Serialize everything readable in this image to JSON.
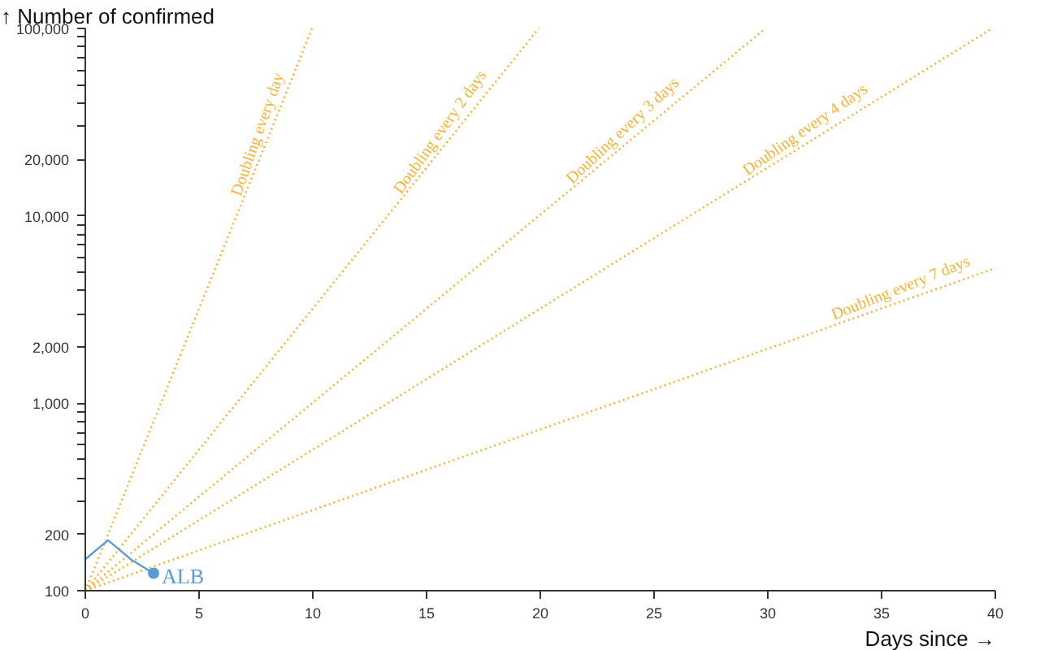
{
  "chart_data": {
    "type": "line",
    "xlabel": "Days since →",
    "ylabel": "↑ Number of confirmed",
    "log": "y",
    "grid": false,
    "marker": "none",
    "xlim": [
      0,
      40
    ],
    "xticks": [
      0,
      5,
      10,
      15,
      20,
      25,
      30,
      35,
      40
    ],
    "ylim": [
      100,
      100000
    ],
    "yticks": [
      {
        "value": 100,
        "label": "100"
      },
      {
        "value": 200,
        "label": "200"
      },
      {
        "value": 300,
        "label": null
      },
      {
        "value": 400,
        "label": null
      },
      {
        "value": 500,
        "label": null
      },
      {
        "value": 600,
        "label": null
      },
      {
        "value": 700,
        "label": null
      },
      {
        "value": 800,
        "label": null
      },
      {
        "value": 900,
        "label": null
      },
      {
        "value": 1000,
        "label": "1,000"
      },
      {
        "value": 2000,
        "label": "2,000"
      },
      {
        "value": 3000,
        "label": null
      },
      {
        "value": 4000,
        "label": null
      },
      {
        "value": 5000,
        "label": null
      },
      {
        "value": 6000,
        "label": null
      },
      {
        "value": 7000,
        "label": null
      },
      {
        "value": 8000,
        "label": null
      },
      {
        "value": 9000,
        "label": null
      },
      {
        "value": 10000,
        "label": "10,000"
      },
      {
        "value": 20000,
        "label": "20,000"
      },
      {
        "value": 30000,
        "label": null
      },
      {
        "value": 40000,
        "label": null
      },
      {
        "value": 50000,
        "label": null
      },
      {
        "value": 60000,
        "label": null
      },
      {
        "value": 70000,
        "label": null
      },
      {
        "value": 80000,
        "label": null
      },
      {
        "value": 90000,
        "label": null
      },
      {
        "value": 100000,
        "label": "100,000"
      }
    ],
    "series": [
      {
        "name": "Doubling every day",
        "color": "#f5b335",
        "line_style": "dotted",
        "x": [
          0,
          9.97
        ],
        "values": [
          100,
          100000
        ]
      },
      {
        "name": "Doubling every 2 days",
        "color": "#f5b335",
        "line_style": "dotted",
        "x": [
          0,
          19.93
        ],
        "values": [
          100,
          100000
        ]
      },
      {
        "name": "Doubling every 3 days",
        "color": "#f5b335",
        "line_style": "dotted",
        "x": [
          0,
          29.9
        ],
        "values": [
          100,
          100000
        ]
      },
      {
        "name": "Doubling every 4 days",
        "color": "#f5b335",
        "line_style": "dotted",
        "x": [
          0,
          39.86
        ],
        "values": [
          100,
          100000
        ]
      },
      {
        "name": "Doubling every 7 days",
        "color": "#f5b335",
        "line_style": "dotted",
        "x": [
          0,
          40
        ],
        "values": [
          100,
          5260
        ]
      },
      {
        "name": "ALB",
        "color": "#5b9bd5",
        "line_style": "solid",
        "x": [
          0,
          1,
          2,
          3
        ],
        "values": [
          147,
          186,
          147,
          124
        ]
      }
    ]
  }
}
